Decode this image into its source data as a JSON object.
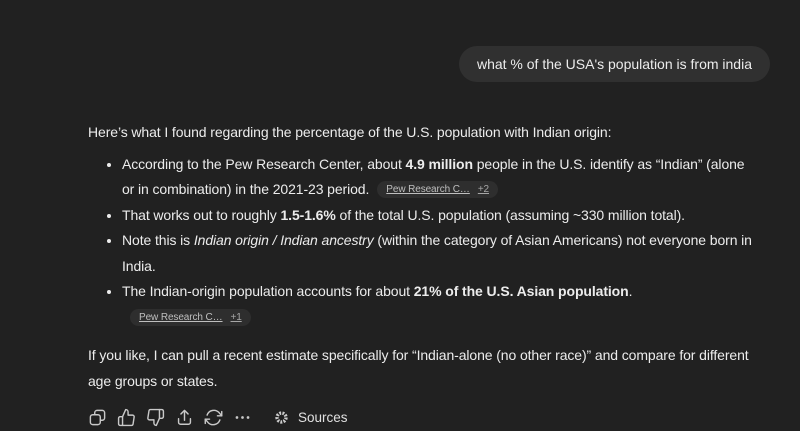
{
  "colors": {
    "background": "#212121",
    "bubble_bg": "#303030",
    "text_primary": "#ececec",
    "chip_bg": "#2e2e2e",
    "chip_text": "#bfbfbf",
    "icon": "#c9c9c9"
  },
  "user_message": {
    "text": "what % of the USA's population is from india"
  },
  "assistant": {
    "intro": "Here’s what I found regarding the percentage of the U.S. population with Indian origin:",
    "bullets": [
      {
        "segments": [
          {
            "text": "According to the Pew Research Center, about ",
            "style": "normal"
          },
          {
            "text": "4.9 million",
            "style": "bold"
          },
          {
            "text": " people in the U.S. identify as “Indian” (alone or in combination) in the 2021-23 period.",
            "style": "normal"
          }
        ],
        "citation": {
          "label": "Pew Research C…",
          "count": "+2"
        }
      },
      {
        "segments": [
          {
            "text": "That works out to roughly ",
            "style": "normal"
          },
          {
            "text": "1.5-1.6%",
            "style": "bold"
          },
          {
            "text": " of the total U.S. population (assuming ~330 million total).",
            "style": "normal"
          }
        ]
      },
      {
        "segments": [
          {
            "text": "Note this is ",
            "style": "normal"
          },
          {
            "text": "Indian origin / Indian ancestry",
            "style": "italic"
          },
          {
            "text": " (within the category of Asian Americans) not everyone born in India.",
            "style": "normal"
          }
        ]
      },
      {
        "segments": [
          {
            "text": "The Indian-origin population accounts for about ",
            "style": "normal"
          },
          {
            "text": "21% of the U.S. Asian population",
            "style": "bold"
          },
          {
            "text": ".",
            "style": "normal"
          }
        ],
        "citation": {
          "label": "Pew Research C…",
          "count": "+1"
        }
      }
    ],
    "outro": "If you like, I can pull a recent estimate specifically for “Indian-alone (no other race)” and compare for different age groups or states."
  },
  "toolbar": {
    "buttons": [
      {
        "name": "copy"
      },
      {
        "name": "thumbs-up"
      },
      {
        "name": "thumbs-down"
      },
      {
        "name": "share"
      },
      {
        "name": "regenerate"
      },
      {
        "name": "more-options"
      }
    ],
    "sources_label": "Sources"
  }
}
